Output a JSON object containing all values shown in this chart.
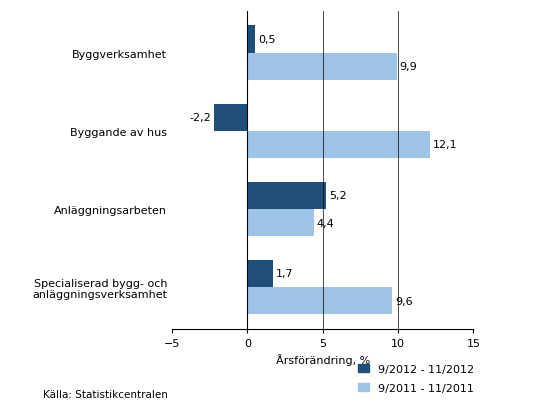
{
  "categories": [
    "Byggverksamhet",
    "Byggande av hus",
    "Anläggningsarbeten",
    "Specialiserad bygg- och\nanläggningsverksamhet"
  ],
  "series1_label": "9/2012 - 11/2012",
  "series2_label": "9/2011 - 11/2011",
  "series1_values": [
    0.5,
    -2.2,
    5.2,
    1.7
  ],
  "series2_values": [
    9.9,
    12.1,
    4.4,
    9.6
  ],
  "series1_color": "#1F4E79",
  "series2_color": "#9DC3E6",
  "xlim": [
    -5,
    15
  ],
  "xticks": [
    -5,
    0,
    5,
    10,
    15
  ],
  "xlabel": "Årsförändring, %",
  "source": "Källa: Statistikcentralen",
  "bar_height": 0.35,
  "background_color": "#ffffff",
  "label_fontsize": 8,
  "axis_fontsize": 8,
  "value_fontsize": 8
}
